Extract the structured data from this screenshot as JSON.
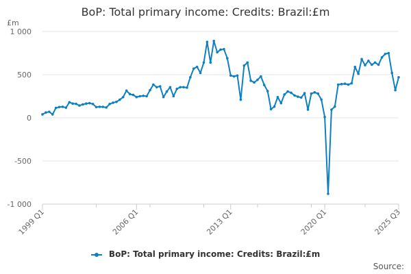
{
  "chart_data": {
    "type": "line",
    "title": "BoP: Total primary income: Credits: Brazil:£m",
    "ylabel": "£m",
    "xlabel": "",
    "ylim": [
      -1000,
      1000
    ],
    "y_ticks": [
      -1000,
      -500,
      0,
      500,
      1000
    ],
    "y_tick_labels": [
      "-1 000",
      "-500",
      "0",
      "500",
      "1 000"
    ],
    "x_ticks": [
      "1999 Q1",
      "2006 Q1",
      "2013 Q1",
      "2020 Q1",
      "2025 Q3"
    ],
    "grid": "horizontal",
    "legend_position": "bottom",
    "color": "#0f7fbf",
    "series": [
      {
        "name": "BoP: Total primary income: Credits: Brazil:£m",
        "start": "1999 Q1",
        "values": [
          40,
          62,
          70,
          40,
          115,
          125,
          128,
          118,
          180,
          165,
          162,
          142,
          155,
          165,
          170,
          160,
          125,
          128,
          127,
          120,
          160,
          175,
          185,
          210,
          240,
          315,
          275,
          265,
          240,
          250,
          255,
          250,
          320,
          385,
          355,
          365,
          240,
          305,
          355,
          250,
          335,
          355,
          355,
          350,
          470,
          570,
          590,
          520,
          640,
          880,
          640,
          890,
          760,
          790,
          795,
          690,
          490,
          480,
          490,
          210,
          605,
          640,
          430,
          410,
          440,
          480,
          380,
          310,
          100,
          130,
          240,
          170,
          270,
          305,
          290,
          260,
          245,
          235,
          285,
          95,
          280,
          295,
          280,
          210,
          10,
          -880,
          95,
          130,
          385,
          390,
          395,
          385,
          400,
          590,
          510,
          680,
          610,
          660,
          615,
          640,
          615,
          700,
          740,
          750,
          520,
          320,
          470
        ]
      }
    ]
  },
  "source_label": "Source:"
}
